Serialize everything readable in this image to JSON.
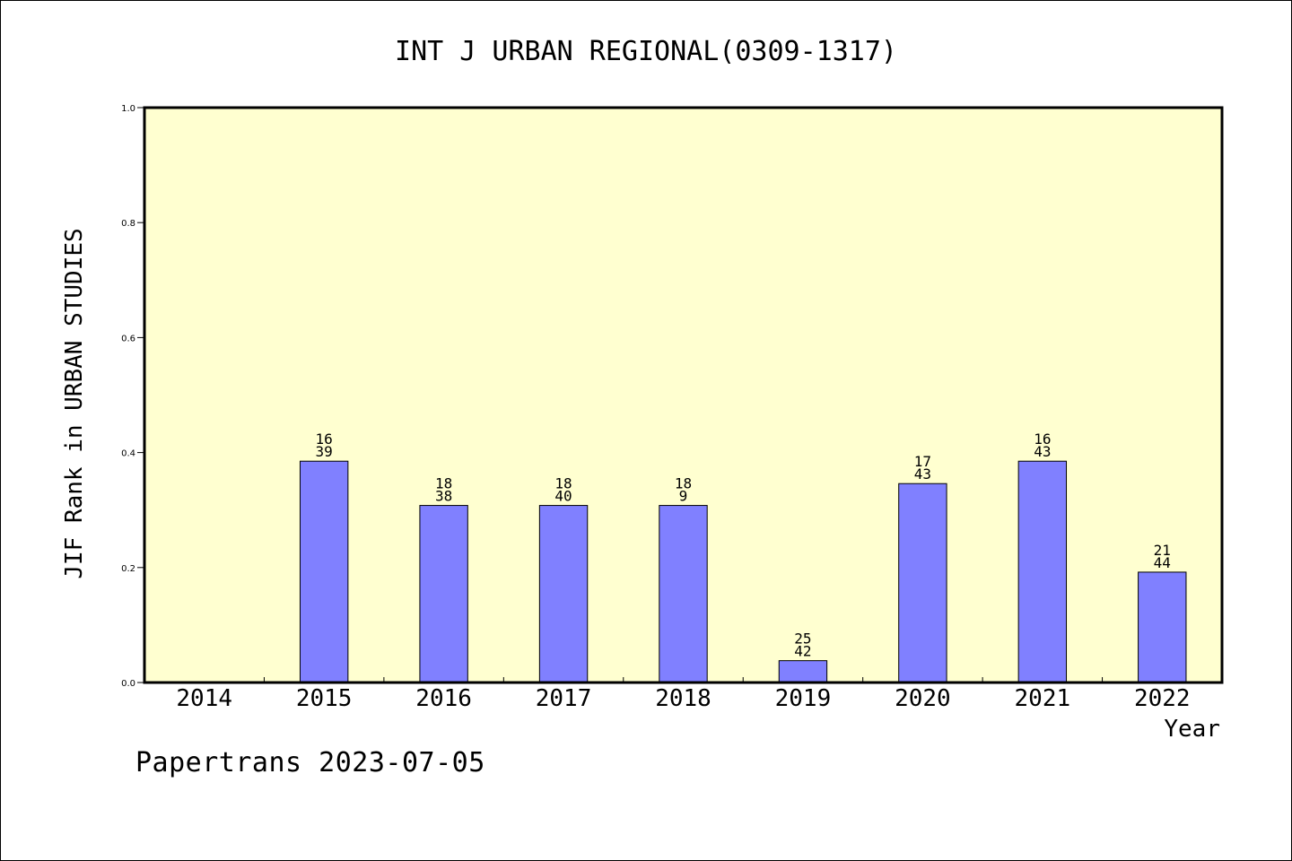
{
  "footer_note": "Papertrans 2023-07-05",
  "colors": {
    "plot_background": "#ffffd0",
    "bar_fill": "#8080ff",
    "bar_stroke": "#000000",
    "axis": "#000000"
  },
  "chart_data": {
    "type": "bar",
    "title": "INT J URBAN REGIONAL(0309-1317)",
    "xlabel": "Year",
    "ylabel": "JIF Rank in URBAN STUDIES",
    "ylim": [
      0,
      1.0
    ],
    "yticks": [
      "0.0",
      "0.2",
      "0.4",
      "0.6",
      "0.8",
      "1.0"
    ],
    "grid": false,
    "categories": [
      "2014",
      "2015",
      "2016",
      "2017",
      "2018",
      "2019",
      "2020",
      "2021",
      "2022"
    ],
    "values": [
      null,
      0.385,
      0.308,
      0.308,
      0.308,
      0.038,
      0.346,
      0.385,
      0.192
    ],
    "labels": [
      null,
      [
        "16",
        "39"
      ],
      [
        "18",
        "38"
      ],
      [
        "18",
        "40"
      ],
      [
        "18",
        "9"
      ],
      [
        "25",
        "42"
      ],
      [
        "17",
        "43"
      ],
      [
        "16",
        "43"
      ],
      [
        "21",
        "44"
      ]
    ]
  }
}
